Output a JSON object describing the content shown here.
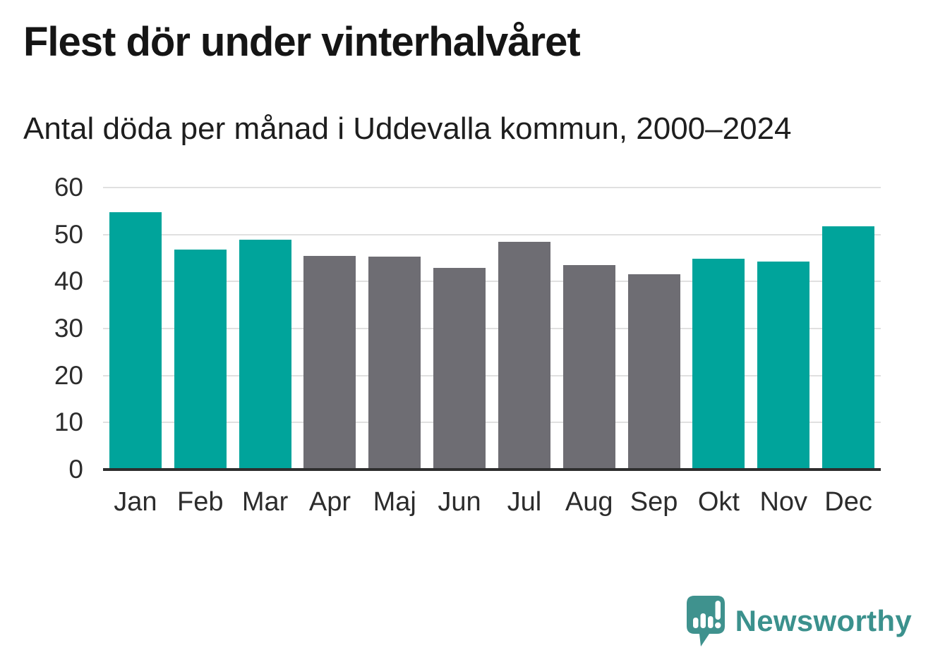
{
  "title": "Flest dör under vinterhalvåret",
  "subtitle": "Antal döda per månad i Uddevalla kommun, 2000–2024",
  "chart_data": {
    "type": "bar",
    "title": "Flest dör under vinterhalvåret",
    "subtitle": "Antal döda per månad i Uddevalla kommun, 2000–2024",
    "categories": [
      "Jan",
      "Feb",
      "Mar",
      "Apr",
      "Maj",
      "Jun",
      "Jul",
      "Aug",
      "Sep",
      "Okt",
      "Nov",
      "Dec"
    ],
    "values": [
      54.8,
      46.8,
      48.9,
      45.4,
      45.3,
      42.9,
      48.5,
      43.5,
      41.5,
      44.9,
      44.3,
      51.8
    ],
    "bar_groups": [
      "winter",
      "winter",
      "winter",
      "summer",
      "summer",
      "summer",
      "summer",
      "summer",
      "summer",
      "winter",
      "winter",
      "winter"
    ],
    "group_colors": {
      "winter": "#00A49B",
      "summer": "#6E6D73"
    },
    "xlabel": "",
    "ylabel": "",
    "ylim": [
      0,
      60
    ],
    "yticks": [
      0,
      10,
      20,
      30,
      40,
      50,
      60
    ],
    "grid": true,
    "legend": "none"
  },
  "branding": {
    "logo_text": "Newsworthy",
    "logo_color": "#3B918D",
    "logo_icon_color": "#3F928E",
    "logo_icon": "speech-bubble-bar-chart-exclamation-icon"
  },
  "style_colors": {
    "background": "#FFFFFF",
    "title": "#151515",
    "subtitle": "#1E1E1E",
    "axis_line": "#2E2E2E",
    "gridline": "#E0E0E0",
    "tick_label": "#2C2C2C"
  }
}
